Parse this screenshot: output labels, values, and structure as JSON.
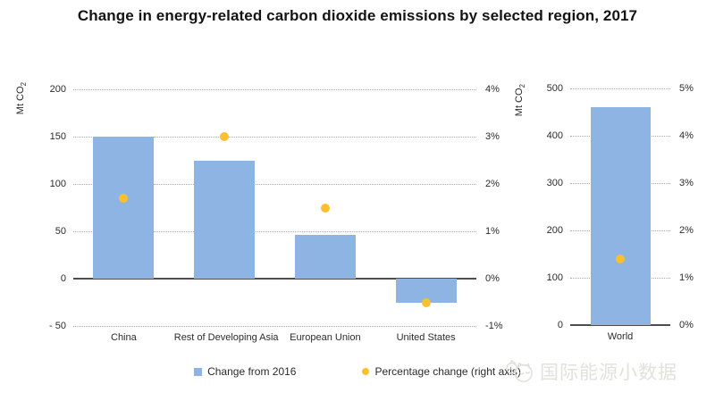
{
  "title": "Change in energy-related carbon dioxide emissions by selected region, 2017",
  "colors": {
    "bar": "#8DB4E2",
    "dot": "#FAC02F",
    "gridline": "#a9a9a9",
    "zero_line": "#4d4d4d",
    "text": "#2b2b2b",
    "watermark": "#e2e2dc"
  },
  "chart_data": [
    {
      "type": "bar",
      "title": "",
      "categories": [
        "China",
        "Rest of Developing Asia",
        "European Union",
        "United States"
      ],
      "series": [
        {
          "name": "Change from 2016",
          "type": "bar",
          "axis": "left",
          "values": [
            150,
            125,
            46,
            -25
          ]
        },
        {
          "name": "Percentage change (right axis)",
          "type": "point",
          "axis": "right",
          "values": [
            1.7,
            3.0,
            1.5,
            -0.5
          ]
        }
      ],
      "left_axis": {
        "label": "Mt CO₂",
        "min": -50,
        "max": 200,
        "tick_step": 50,
        "tick_labels": [
          "200",
          "150",
          "100",
          "50",
          "0",
          "- 50"
        ]
      },
      "right_axis": {
        "min": -1,
        "max": 4,
        "tick_step": 1,
        "tick_labels": [
          "4%",
          "3%",
          "2%",
          "1%",
          "0%",
          "-1%"
        ]
      },
      "grid": "dotted-horizontal",
      "legend_position": "bottom"
    },
    {
      "type": "bar",
      "title": "",
      "categories": [
        "World"
      ],
      "series": [
        {
          "name": "Change from 2016",
          "type": "bar",
          "axis": "left",
          "values": [
            460
          ]
        },
        {
          "name": "Percentage change (right axis)",
          "type": "point",
          "axis": "right",
          "values": [
            1.4
          ]
        }
      ],
      "left_axis": {
        "label": "Mt CO₂",
        "min": 0,
        "max": 500,
        "tick_step": 100,
        "tick_labels": [
          "500",
          "400",
          "300",
          "200",
          "100",
          "0"
        ]
      },
      "right_axis": {
        "min": 0,
        "max": 5,
        "tick_step": 1,
        "tick_labels": [
          "5%",
          "4%",
          "3%",
          "2%",
          "1%",
          "0%"
        ]
      },
      "grid": "dotted-horizontal",
      "legend_position": "bottom"
    }
  ],
  "legend": [
    {
      "marker": "square",
      "label": "Change from 2016"
    },
    {
      "marker": "dot",
      "label": "Percentage change (right axis)"
    }
  ],
  "watermark": {
    "icon": "cat-logo-icon",
    "text": "国际能源小数据"
  }
}
